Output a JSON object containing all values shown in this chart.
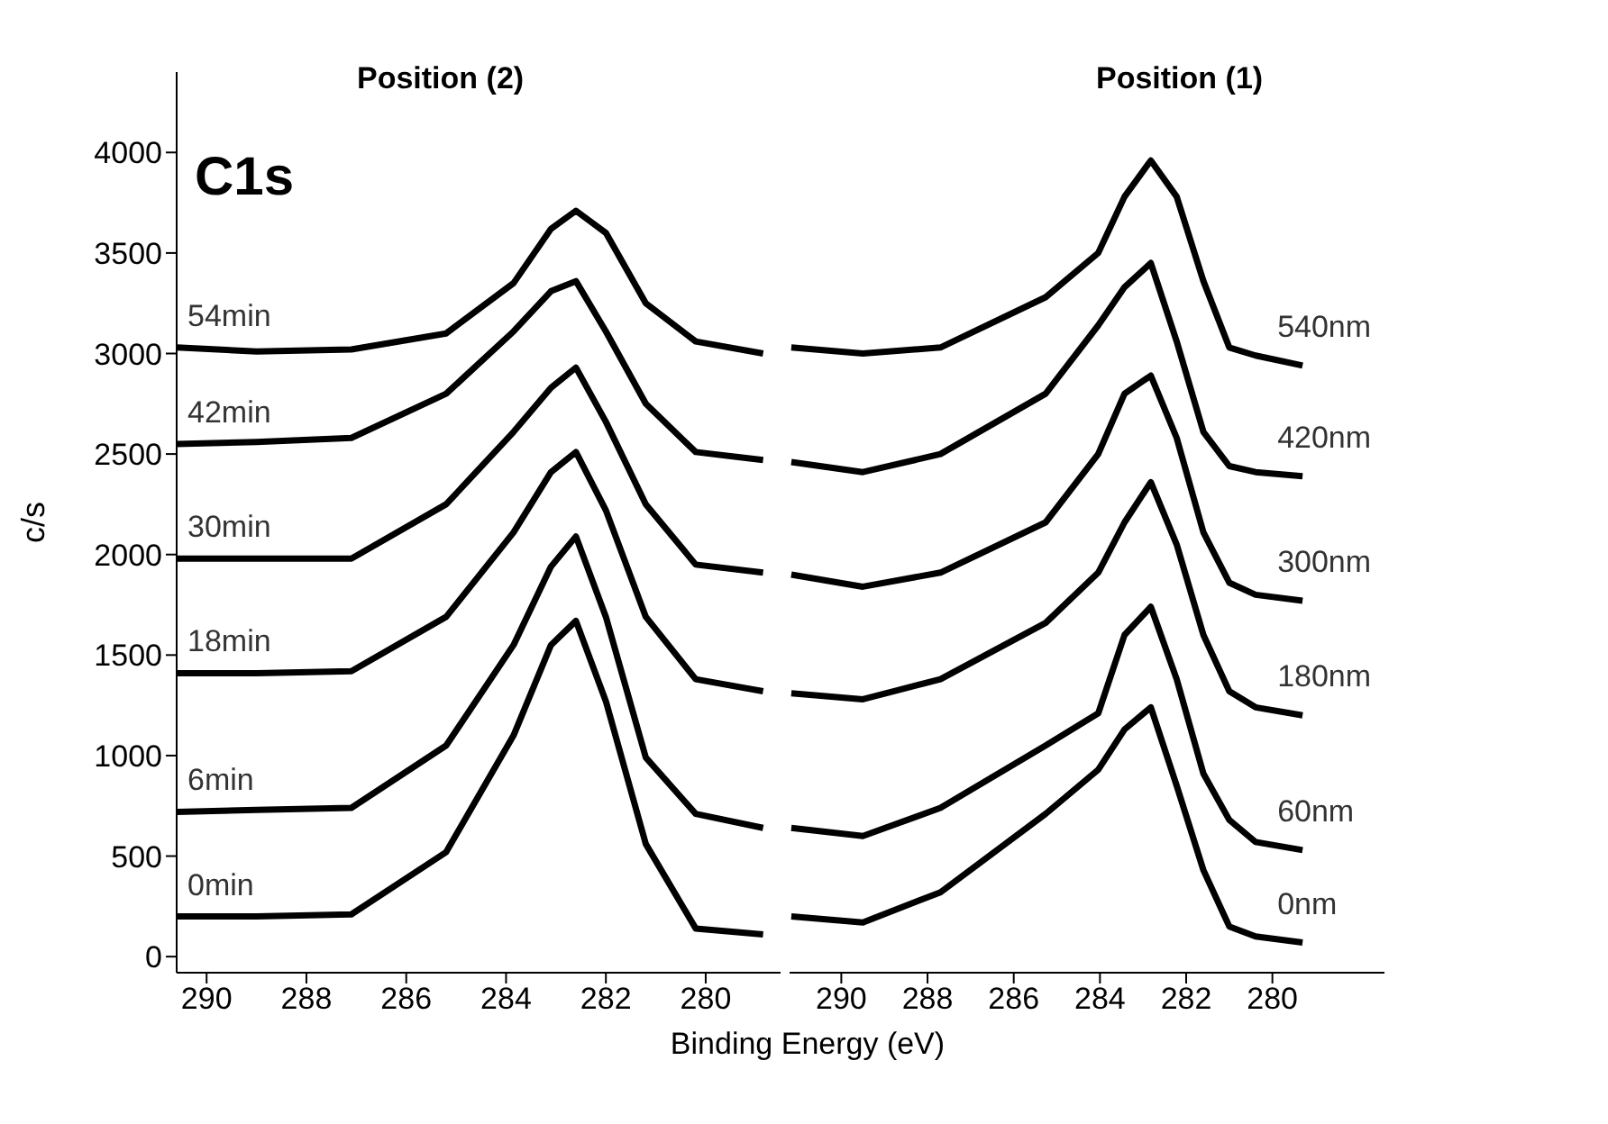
{
  "chart_data": [
    {
      "type": "line",
      "title": "Position (2)",
      "xlabel": "Binding Energy (eV)",
      "ylabel": "c/s",
      "annotations": [
        "C1s"
      ],
      "x": [
        290.6,
        289,
        287.1,
        285.2,
        283.85,
        283.1,
        282.6,
        282,
        281.2,
        280.2,
        278.85
      ],
      "series": [
        {
          "name": "0min",
          "color": "#000000",
          "values": [
            200,
            200,
            210,
            520,
            1100,
            1550,
            1670,
            1270,
            560,
            140,
            110
          ]
        },
        {
          "name": "6min",
          "color": "#000000",
          "values": [
            720,
            730,
            740,
            1050,
            1550,
            1940,
            2090,
            1690,
            990,
            710,
            640
          ]
        },
        {
          "name": "18min",
          "color": "#000000",
          "values": [
            1410,
            1410,
            1420,
            1690,
            2110,
            2410,
            2510,
            2220,
            1690,
            1380,
            1320
          ]
        },
        {
          "name": "30min",
          "color": "#000000",
          "values": [
            1980,
            1980,
            1980,
            2250,
            2610,
            2830,
            2930,
            2660,
            2250,
            1950,
            1910
          ]
        },
        {
          "name": "42min",
          "color": "#000000",
          "values": [
            2550,
            2560,
            2580,
            2800,
            3110,
            3310,
            3360,
            3110,
            2750,
            2510,
            2470
          ]
        },
        {
          "name": "54min",
          "color": "#000000",
          "values": [
            3030,
            3010,
            3020,
            3100,
            3350,
            3620,
            3710,
            3600,
            3250,
            3060,
            3000
          ]
        }
      ],
      "xlim": [
        290.6,
        278.5
      ],
      "xticks": [
        290,
        288,
        286,
        284,
        282,
        280
      ],
      "ylim": [
        -80,
        4400
      ],
      "yticks": [
        0,
        500,
        1000,
        1500,
        2000,
        2500,
        3000,
        3500,
        4000
      ]
    },
    {
      "type": "line",
      "title": "Position (1)",
      "x": [
        291.16,
        289.5,
        287.7,
        285.26,
        284.04,
        283.43,
        282.82,
        282.22,
        281.6,
        281.0,
        280.39,
        279.3
      ],
      "series": [
        {
          "name": "0nm",
          "color": "#000000",
          "values": [
            200,
            170,
            320,
            710,
            930,
            1130,
            1240,
            850,
            430,
            150,
            100,
            70
          ]
        },
        {
          "name": "60nm",
          "color": "#000000",
          "values": [
            640,
            600,
            740,
            1050,
            1210,
            1600,
            1740,
            1380,
            910,
            680,
            570,
            530
          ]
        },
        {
          "name": "180nm",
          "color": "#000000",
          "values": [
            1310,
            1280,
            1380,
            1660,
            1910,
            2160,
            2360,
            2050,
            1600,
            1320,
            1240,
            1200
          ]
        },
        {
          "name": "300nm",
          "color": "#000000",
          "values": [
            1900,
            1840,
            1910,
            2160,
            2500,
            2800,
            2890,
            2580,
            2110,
            1860,
            1800,
            1770
          ]
        },
        {
          "name": "420nm",
          "color": "#000000",
          "values": [
            2460,
            2410,
            2500,
            2800,
            3140,
            3330,
            3450,
            3060,
            2610,
            2440,
            2410,
            2390
          ]
        },
        {
          "name": "540nm",
          "color": "#000000",
          "values": [
            3030,
            3000,
            3030,
            3280,
            3500,
            3780,
            3960,
            3780,
            3360,
            3030,
            2990,
            2940
          ]
        }
      ],
      "xlim": [
        291.2,
        277.4
      ],
      "xticks": [
        290,
        288,
        286,
        284,
        282,
        280
      ],
      "ylim": [
        -80,
        4000
      ],
      "yticks": [
        0,
        500,
        1000,
        1500,
        2000,
        2500,
        3000,
        3500,
        4000
      ],
      "tick_labels": "x"
    }
  ]
}
